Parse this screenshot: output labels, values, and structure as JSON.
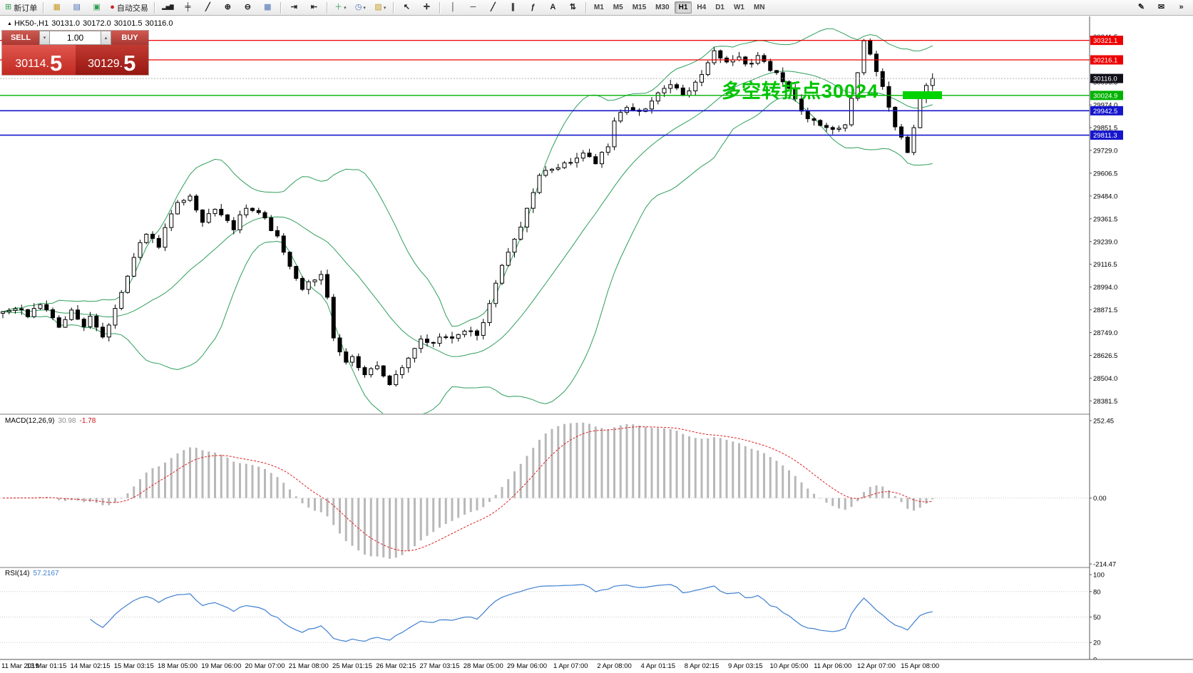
{
  "toolbar": {
    "new_order_label": "新订单",
    "auto_trading_label": "自动交易",
    "timeframes": [
      "M1",
      "M5",
      "M15",
      "M30",
      "H1",
      "H4",
      "D1",
      "W1",
      "MN"
    ],
    "active_timeframe": "H1",
    "icons": {
      "new_order": "⊞",
      "new_chart": "▦",
      "profiles": "▤",
      "data_window": "▣",
      "auto_trading_dot": "●",
      "chart_bars": "▂▅▇",
      "chart_candles": "╪",
      "chart_line": "╱",
      "zoom_in": "⊕",
      "zoom_out": "⊖",
      "tile_windows": "▦",
      "auto_scroll": "⇥",
      "chart_shift": "⇤",
      "indicators_plus": "＋",
      "periods_clock": "◷",
      "templates": "▧",
      "dropdown": "▾",
      "cursor": "↖",
      "crosshair": "✛",
      "vertical_line": "│",
      "horizontal_line": "─",
      "trendline": "╱",
      "channel": "∥",
      "fibonacci": "ƒ",
      "text_tool": "A",
      "arrows_tool": "⇅",
      "pencil": "✎",
      "compose": "✉",
      "overflow": "»",
      "spin_up": "▴",
      "spin_down": "▾"
    }
  },
  "chart": {
    "header": {
      "marker": "▲",
      "symbol": "HK50-,H1",
      "open": "30131.0",
      "high": "30172.0",
      "low": "30101.5",
      "close": "30116.0"
    },
    "one_click": {
      "sell_label": "SELL",
      "buy_label": "BUY",
      "volume": "1.00",
      "sell_price_main": "30114.",
      "sell_price_big": "5",
      "buy_price_main": "30129.",
      "buy_price_big": "5"
    },
    "annotation": {
      "text": "多空转折点30024",
      "color": "#00c400",
      "pivot_price": 30024
    }
  },
  "chart_data": {
    "type": "candlestick",
    "symbol": "HK50-",
    "timeframe": "H1",
    "candle_count": 150,
    "last_close": 30116.0,
    "ohlc_current": {
      "open": 30131.0,
      "high": 30172.0,
      "low": 30101.5,
      "close": 30116.0
    },
    "close_anchors": [
      [
        0,
        28850
      ],
      [
        2,
        28880
      ],
      [
        4,
        28840
      ],
      [
        6,
        28900
      ],
      [
        7,
        28860
      ],
      [
        9,
        28780
      ],
      [
        11,
        28870
      ],
      [
        13,
        28790
      ],
      [
        14,
        28830
      ],
      [
        16,
        28720
      ],
      [
        18,
        28880
      ],
      [
        20,
        29060
      ],
      [
        21,
        29160
      ],
      [
        23,
        29290
      ],
      [
        25,
        29210
      ],
      [
        27,
        29400
      ],
      [
        28,
        29440
      ],
      [
        30,
        29490
      ],
      [
        32,
        29350
      ],
      [
        34,
        29410
      ],
      [
        35,
        29390
      ],
      [
        37,
        29310
      ],
      [
        39,
        29430
      ],
      [
        41,
        29390
      ],
      [
        42,
        29360
      ],
      [
        44,
        29260
      ],
      [
        46,
        29110
      ],
      [
        48,
        28990
      ],
      [
        49,
        29010
      ],
      [
        51,
        29060
      ],
      [
        52,
        28950
      ],
      [
        53,
        28720
      ],
      [
        55,
        28590
      ],
      [
        56,
        28610
      ],
      [
        58,
        28530
      ],
      [
        60,
        28570
      ],
      [
        62,
        28470
      ],
      [
        63,
        28530
      ],
      [
        65,
        28610
      ],
      [
        67,
        28710
      ],
      [
        69,
        28690
      ],
      [
        70,
        28730
      ],
      [
        72,
        28710
      ],
      [
        74,
        28770
      ],
      [
        76,
        28730
      ],
      [
        77,
        28810
      ],
      [
        79,
        29010
      ],
      [
        81,
        29190
      ],
      [
        83,
        29310
      ],
      [
        84,
        29410
      ],
      [
        86,
        29590
      ],
      [
        88,
        29630
      ],
      [
        90,
        29660
      ],
      [
        91,
        29670
      ],
      [
        93,
        29710
      ],
      [
        95,
        29660
      ],
      [
        97,
        29760
      ],
      [
        98,
        29890
      ],
      [
        100,
        29960
      ],
      [
        102,
        29930
      ],
      [
        104,
        29990
      ],
      [
        105,
        30030
      ],
      [
        107,
        30090
      ],
      [
        109,
        30030
      ],
      [
        111,
        30090
      ],
      [
        112,
        30130
      ],
      [
        114,
        30260
      ],
      [
        116,
        30210
      ],
      [
        118,
        30240
      ],
      [
        119,
        30190
      ],
      [
        121,
        30230
      ],
      [
        123,
        30160
      ],
      [
        125,
        30110
      ],
      [
        126,
        30060
      ],
      [
        128,
        29930
      ],
      [
        130,
        29880
      ],
      [
        132,
        29860
      ],
      [
        133,
        29830
      ],
      [
        135,
        29860
      ],
      [
        136,
        30000
      ],
      [
        137,
        30160
      ],
      [
        138,
        30330
      ],
      [
        139,
        30260
      ],
      [
        140,
        30160
      ],
      [
        141,
        30060
      ],
      [
        142,
        29960
      ],
      [
        143,
        29860
      ],
      [
        144,
        29790
      ],
      [
        145,
        29730
      ],
      [
        146,
        29860
      ],
      [
        147,
        30010
      ],
      [
        148,
        30090
      ],
      [
        149,
        30116
      ]
    ],
    "levels": [
      {
        "price": 30321.1,
        "color": "#ee0000",
        "width": 1.2,
        "type": "resistance"
      },
      {
        "price": 30216.1,
        "color": "#ee0000",
        "width": 1.2,
        "type": "resistance"
      },
      {
        "price": 30116.0,
        "color": "#10101a",
        "width": 1.0,
        "type": "current"
      },
      {
        "price": 30024.9,
        "color": "#00b300",
        "width": 1.4,
        "type": "pivot"
      },
      {
        "price": 29942.5,
        "color": "#1515cc",
        "width": 1.6,
        "type": "support"
      },
      {
        "price": 29811.3,
        "color": "#1515cc",
        "width": 1.6,
        "type": "support"
      }
    ],
    "price_axis_ticks": [
      30341.5,
      30219.0,
      30096.5,
      29974.0,
      29851.5,
      29729.0,
      29606.5,
      29484.0,
      29361.5,
      29239.0,
      29116.5,
      28994.0,
      28871.5,
      28749.0,
      28626.5,
      28504.0,
      28381.5
    ],
    "time_labels": [
      "11 Mar 2019",
      "13 Mar 01:15",
      "14 Mar 02:15",
      "15 Mar 03:15",
      "18 Mar 05:00",
      "19 Mar 06:00",
      "20 Mar 07:00",
      "21 Mar 08:00",
      "25 Mar 01:15",
      "26 Mar 02:15",
      "27 Mar 03:15",
      "28 Mar 05:00",
      "29 Mar 06:00",
      "1 Apr 07:00",
      "2 Apr 08:00",
      "4 Apr 01:15",
      "8 Apr 02:15",
      "9 Apr 03:15",
      "10 Apr 05:00",
      "11 Apr 06:00",
      "12 Apr 07:00",
      "15 Apr 08:00"
    ],
    "indicators": {
      "bollinger": {
        "period": 20,
        "deviation": 2,
        "color": "#2e9e5b"
      },
      "macd": {
        "label": "MACD(12,26,9)",
        "main_value": "30.98",
        "signal_value": "-1.78",
        "scale_max": "252.45",
        "scale_zero": "0.00",
        "scale_min": "-214.47"
      },
      "rsi": {
        "label": "RSI(14)",
        "value": "57.2167",
        "scale": [
          100,
          80,
          50,
          20,
          0
        ]
      }
    }
  }
}
